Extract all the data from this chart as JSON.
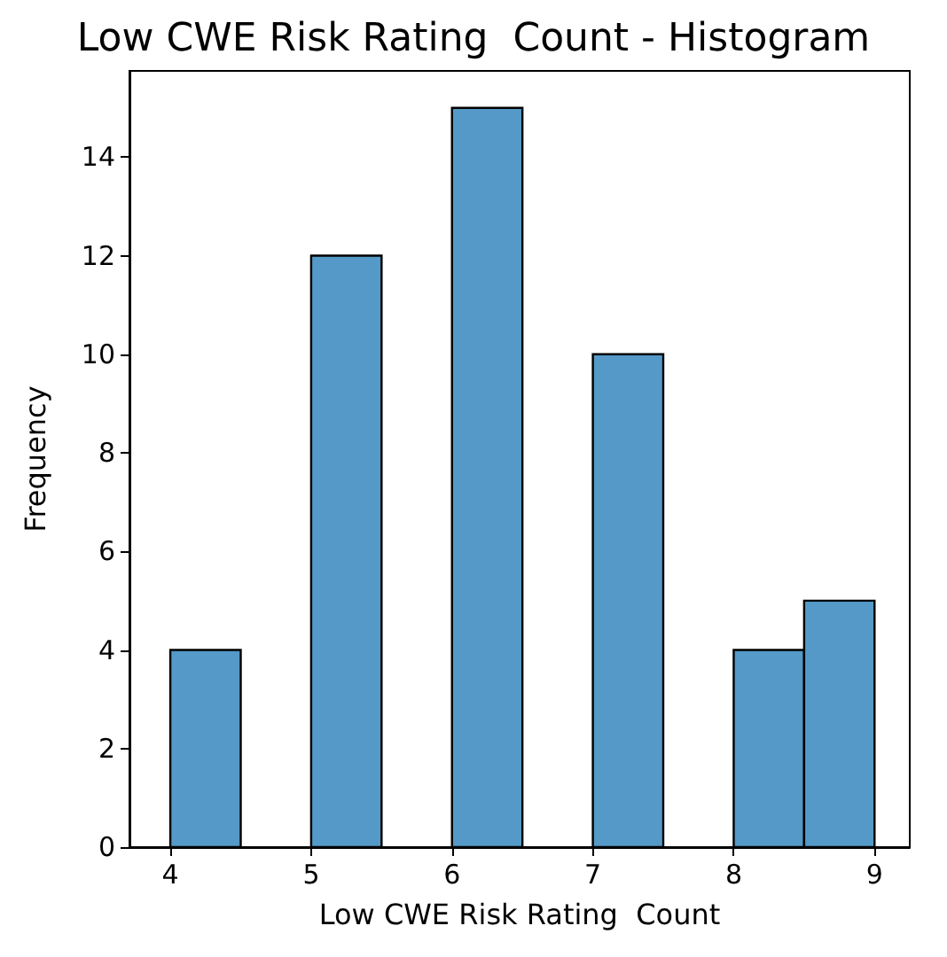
{
  "chart_data": {
    "type": "histogram",
    "title": "Low CWE Risk Rating  Count - Histogram",
    "xlabel": "Low CWE Risk Rating  Count",
    "ylabel": "Frequency",
    "bins": [
      4,
      4.5,
      5,
      5.5,
      6,
      6.5,
      7,
      7.5,
      8,
      8.5,
      9
    ],
    "values": [
      4,
      0,
      12,
      0,
      15,
      0,
      10,
      0,
      4,
      5
    ],
    "color": "#5499c7",
    "xlim": [
      3.71,
      9.25
    ],
    "xticks": [
      4,
      5,
      6,
      7,
      8,
      9
    ],
    "ylim": [
      0,
      15.75
    ],
    "yticks": [
      0,
      2,
      4,
      6,
      8,
      10,
      12,
      14
    ],
    "grid": false
  }
}
